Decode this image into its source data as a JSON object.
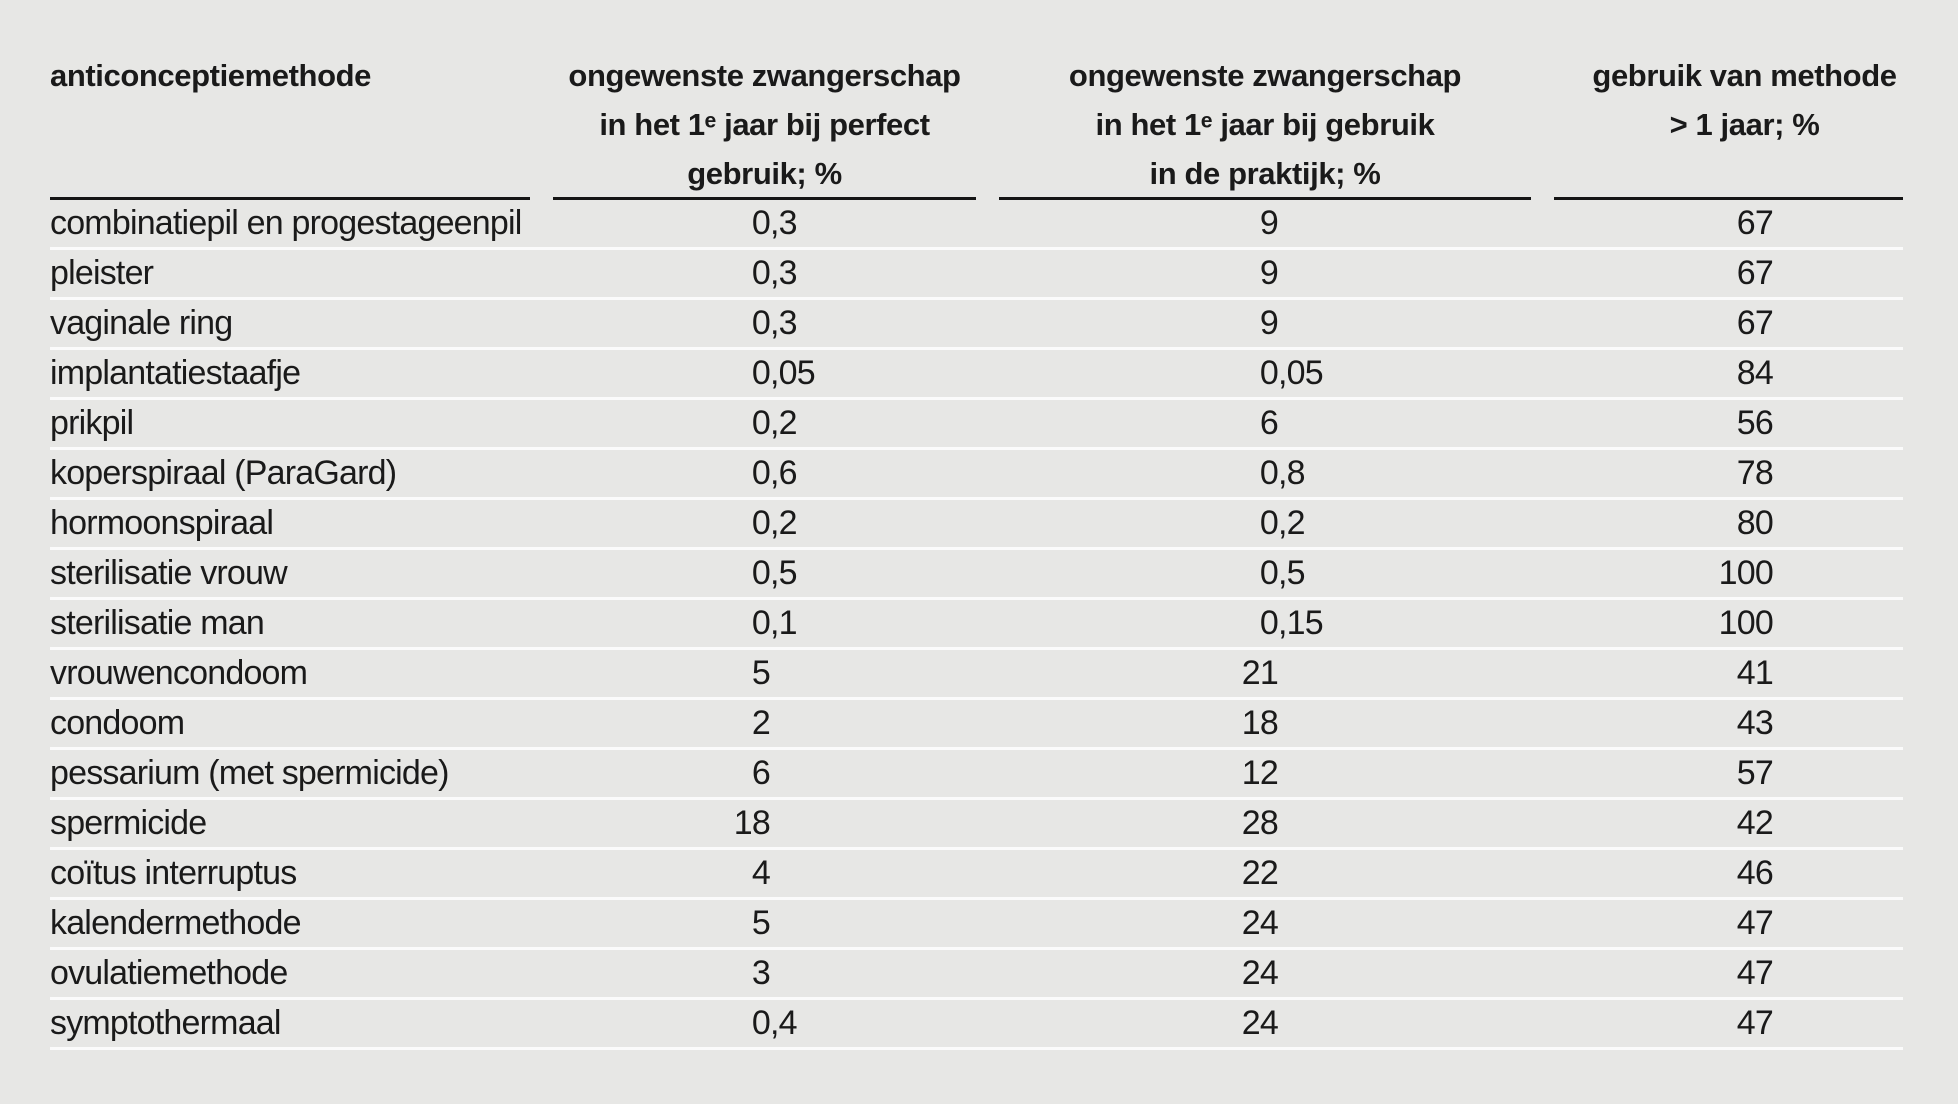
{
  "colors": {
    "background": "#e7e7e5",
    "header_rule": "#151515",
    "row_separator": "#fbfbfb",
    "text": "#1a1a1a"
  },
  "chart_data": {
    "type": "table",
    "columns": [
      {
        "id": "method",
        "lines": [
          "anticonceptiemethode"
        ]
      },
      {
        "id": "perfect",
        "lines": [
          "ongewenste zwangerschap",
          "in het 1ᵉ jaar bij perfect",
          "gebruik; %"
        ]
      },
      {
        "id": "typical",
        "lines": [
          "ongewenste zwangerschap",
          "in het 1ᵉ jaar bij gebruik",
          "in de praktijk; %"
        ]
      },
      {
        "id": "continuation",
        "lines": [
          "gebruik van methode",
          "> 1 jaar; %"
        ]
      }
    ],
    "rows": [
      {
        "method": "combinatiepil en progestageenpil",
        "perfect": "0,3",
        "typical": "9",
        "continuation": "67"
      },
      {
        "method": "pleister",
        "perfect": "0,3",
        "typical": "9",
        "continuation": "67"
      },
      {
        "method": "vaginale ring",
        "perfect": "0,3",
        "typical": "9",
        "continuation": "67"
      },
      {
        "method": "implantatiestaafje",
        "perfect": "0,05",
        "typical": "0,05",
        "continuation": "84"
      },
      {
        "method": "prikpil",
        "perfect": "0,2",
        "typical": "6",
        "continuation": "56"
      },
      {
        "method": "koperspiraal (ParaGard)",
        "perfect": "0,6",
        "typical": "0,8",
        "continuation": "78"
      },
      {
        "method": "hormoonspiraal",
        "perfect": "0,2",
        "typical": "0,2",
        "continuation": "80"
      },
      {
        "method": "sterilisatie vrouw",
        "perfect": "0,5",
        "typical": "0,5",
        "continuation": "100"
      },
      {
        "method": "sterilisatie man",
        "perfect": "0,1",
        "typical": "0,15",
        "continuation": "100"
      },
      {
        "method": "vrouwencondoom",
        "perfect": "5",
        "typical": "21",
        "continuation": "41"
      },
      {
        "method": "condoom",
        "perfect": "2",
        "typical": "18",
        "continuation": "43"
      },
      {
        "method": "pessarium (met spermicide)",
        "perfect": "6",
        "typical": "12",
        "continuation": "57"
      },
      {
        "method": "spermicide",
        "perfect": "18",
        "typical": "28",
        "continuation": "42"
      },
      {
        "method": "coïtus interruptus",
        "perfect": "4",
        "typical": "22",
        "continuation": "46"
      },
      {
        "method": "kalendermethode",
        "perfect": "5",
        "typical": "24",
        "continuation": "47"
      },
      {
        "method": "ovulatiemethode",
        "perfect": "3",
        "typical": "24",
        "continuation": "47"
      },
      {
        "method": "symptothermaal",
        "perfect": "0,4",
        "typical": "24",
        "continuation": "47"
      }
    ]
  }
}
